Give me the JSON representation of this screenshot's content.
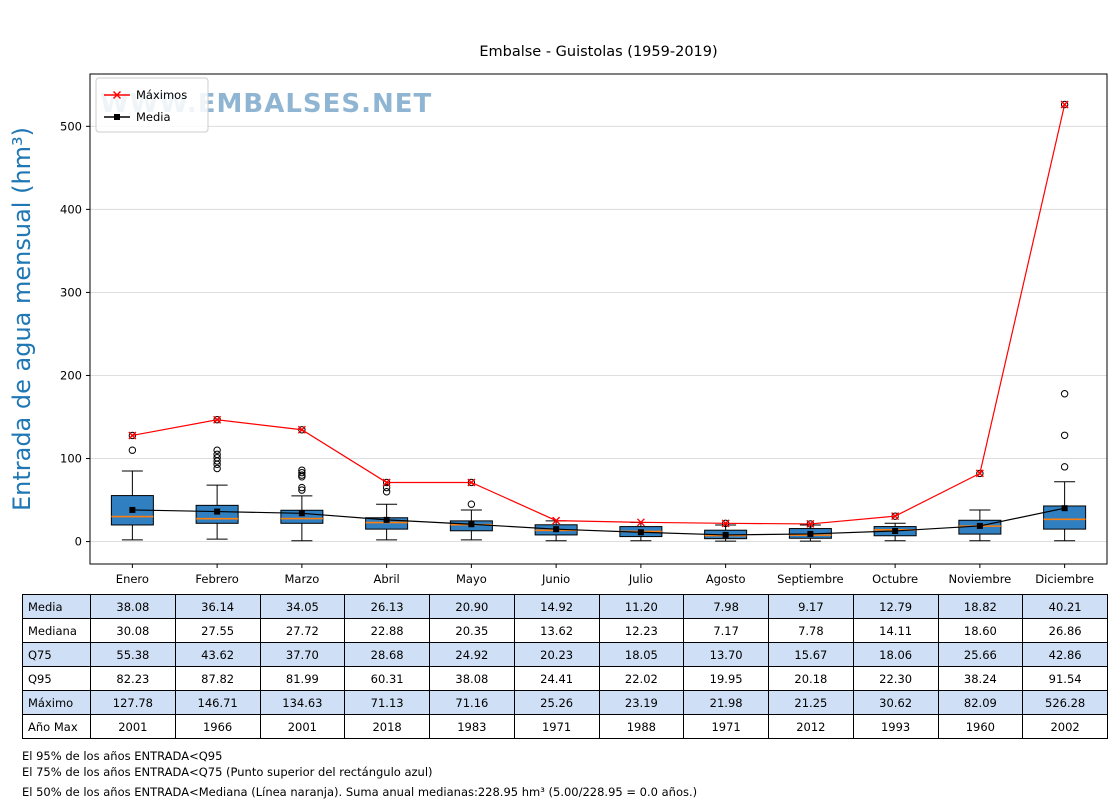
{
  "title": "Embalse - Guistolas (1959-2019)",
  "watermark": "WWW.EMBALSES.NET",
  "legend": {
    "items": [
      {
        "label": "Máximos"
      },
      {
        "label": "Media"
      }
    ]
  },
  "colors": {
    "box_fill": "#2f7fc1",
    "median_line": "#ff7f0e",
    "max_line": "#ff0000",
    "mean_line": "#000000",
    "ylabel": "#1f77b4",
    "watermark": "#8fb5d2",
    "grid": "#d9d9d9",
    "row_shade": "#cfdff5"
  },
  "chart_data": {
    "type": "boxplot",
    "title": "Embalse - Guistolas (1959-2019)",
    "ylabel": "Entrada de agua mensual (hm³)",
    "xlabel": "",
    "ylim": [
      -27,
      563
    ],
    "yticks": [
      0,
      100,
      200,
      300,
      400,
      500
    ],
    "grid": "horizontal",
    "legend_position": "upper-left",
    "months": [
      "Enero",
      "Febrero",
      "Marzo",
      "Abril",
      "Mayo",
      "Junio",
      "Julio",
      "Agosto",
      "Septiembre",
      "Octubre",
      "Noviembre",
      "Diciembre"
    ],
    "box": [
      {
        "q1": 20,
        "med": 30.08,
        "q3": 55.38,
        "lo": 2,
        "hi": 85,
        "out": [
          110
        ]
      },
      {
        "q1": 22,
        "med": 27.55,
        "q3": 43.62,
        "lo": 3,
        "hi": 68,
        "out": [
          88,
          93,
          97,
          101,
          105,
          110
        ]
      },
      {
        "q1": 22,
        "med": 27.72,
        "q3": 37.7,
        "lo": 1,
        "hi": 55,
        "out": [
          62,
          65,
          78,
          80,
          83,
          86
        ]
      },
      {
        "q1": 15,
        "med": 22.88,
        "q3": 28.68,
        "lo": 2,
        "hi": 45,
        "out": [
          60,
          65
        ]
      },
      {
        "q1": 13,
        "med": 20.35,
        "q3": 24.92,
        "lo": 2,
        "hi": 38,
        "out": [
          45
        ]
      },
      {
        "q1": 8,
        "med": 13.62,
        "q3": 20.23,
        "lo": 1,
        "hi": 25,
        "out": []
      },
      {
        "q1": 6,
        "med": 12.23,
        "q3": 18.05,
        "lo": 1,
        "hi": 23,
        "out": []
      },
      {
        "q1": 3.5,
        "med": 7.17,
        "q3": 13.7,
        "lo": 0.5,
        "hi": 20,
        "out": []
      },
      {
        "q1": 4,
        "med": 7.78,
        "q3": 15.67,
        "lo": 0.5,
        "hi": 20,
        "out": []
      },
      {
        "q1": 7,
        "med": 14.11,
        "q3": 18.06,
        "lo": 1,
        "hi": 22,
        "out": []
      },
      {
        "q1": 9,
        "med": 18.6,
        "q3": 25.66,
        "lo": 1,
        "hi": 38,
        "out": []
      },
      {
        "q1": 15,
        "med": 26.86,
        "q3": 42.86,
        "lo": 1,
        "hi": 72,
        "out": [
          90,
          128,
          178
        ]
      }
    ],
    "series": [
      {
        "name": "Media",
        "values": [
          38.08,
          36.14,
          34.05,
          26.13,
          20.9,
          14.92,
          11.2,
          7.98,
          9.17,
          12.79,
          18.82,
          40.21
        ]
      },
      {
        "name": "Máximos",
        "values": [
          127.78,
          146.71,
          134.63,
          71.13,
          71.16,
          25.26,
          23.19,
          21.98,
          21.25,
          30.62,
          82.09,
          526.28
        ]
      }
    ]
  },
  "table": {
    "rows": [
      {
        "label": "Media",
        "values": [
          "38.08",
          "36.14",
          "34.05",
          "26.13",
          "20.90",
          "14.92",
          "11.20",
          "7.98",
          "9.17",
          "12.79",
          "18.82",
          "40.21"
        ]
      },
      {
        "label": "Mediana",
        "values": [
          "30.08",
          "27.55",
          "27.72",
          "22.88",
          "20.35",
          "13.62",
          "12.23",
          "7.17",
          "7.78",
          "14.11",
          "18.60",
          "26.86"
        ]
      },
      {
        "label": "Q75",
        "values": [
          "55.38",
          "43.62",
          "37.70",
          "28.68",
          "24.92",
          "20.23",
          "18.05",
          "13.70",
          "15.67",
          "18.06",
          "25.66",
          "42.86"
        ]
      },
      {
        "label": "Q95",
        "values": [
          "82.23",
          "87.82",
          "81.99",
          "60.31",
          "38.08",
          "24.41",
          "22.02",
          "19.95",
          "20.18",
          "22.30",
          "38.24",
          "91.54"
        ]
      },
      {
        "label": "Máximo",
        "values": [
          "127.78",
          "146.71",
          "134.63",
          "71.13",
          "71.16",
          "25.26",
          "23.19",
          "21.98",
          "21.25",
          "30.62",
          "82.09",
          "526.28"
        ]
      },
      {
        "label": "Año Max",
        "values": [
          "2001",
          "1966",
          "2001",
          "2018",
          "1983",
          "1971",
          "1988",
          "1971",
          "2012",
          "1993",
          "1960",
          "2002"
        ]
      }
    ]
  },
  "footnotes": [
    "El 95% de los años ENTRADA<Q95",
    "El 75% de los años ENTRADA<Q75 (Punto superior del rectángulo azul)",
    "El 50% de los años ENTRADA<Mediana (Línea naranja). Suma anual medianas:228.95 hm³ (5.00/228.95 = 0.0 años.)"
  ]
}
